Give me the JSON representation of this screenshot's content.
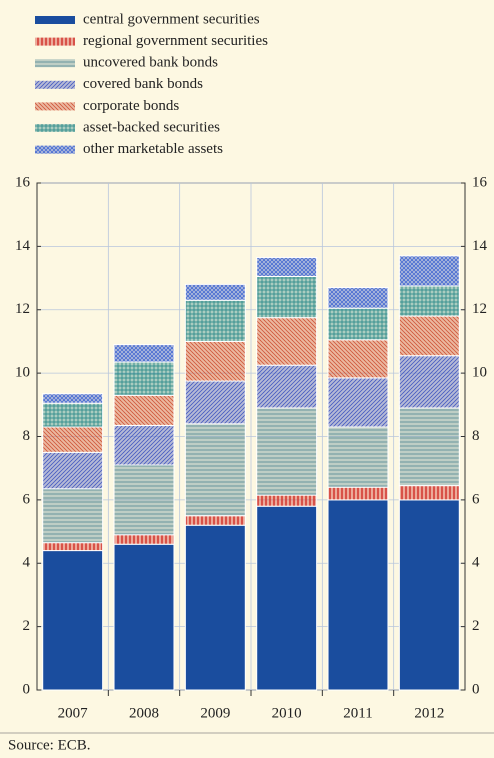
{
  "chart_data": {
    "type": "stacked_bar",
    "categories": [
      "2007",
      "2008",
      "2009",
      "2010",
      "2011",
      "2012"
    ],
    "series": [
      {
        "name": "central government securities",
        "color": "#1a4d9e",
        "values": [
          4.4,
          4.6,
          5.2,
          5.8,
          6.0,
          6.0
        ]
      },
      {
        "name": "regional government securities",
        "color": "#d2352e",
        "values": [
          0.25,
          0.3,
          0.3,
          0.35,
          0.4,
          0.45
        ]
      },
      {
        "name": "uncovered bank bonds",
        "color": "#5e8e98",
        "values": [
          1.7,
          2.2,
          2.9,
          2.75,
          1.9,
          2.45
        ]
      },
      {
        "name": "covered bank bonds",
        "color": "#4a5fc2",
        "values": [
          1.15,
          1.25,
          1.35,
          1.35,
          1.55,
          1.65
        ]
      },
      {
        "name": "corporate bonds",
        "color": "#d05a3e",
        "values": [
          0.8,
          0.95,
          1.25,
          1.5,
          1.2,
          1.25
        ]
      },
      {
        "name": "asset-backed securities",
        "color": "#2f8c8c",
        "values": [
          0.75,
          1.05,
          1.3,
          1.3,
          1.0,
          0.95
        ]
      },
      {
        "name": "other marketable assets",
        "color": "#4c6fd2",
        "values": [
          0.3,
          0.55,
          0.5,
          0.6,
          0.65,
          0.95
        ]
      }
    ],
    "ylim": [
      0,
      16
    ],
    "yticks": [
      0,
      2,
      4,
      6,
      8,
      10,
      12,
      14,
      16
    ],
    "y2lim": [
      0,
      16
    ],
    "y2ticks": [
      0,
      2,
      4,
      6,
      8,
      10,
      12,
      14,
      16
    ],
    "grid": true,
    "legend": "top-left",
    "source": "Source: ECB."
  }
}
